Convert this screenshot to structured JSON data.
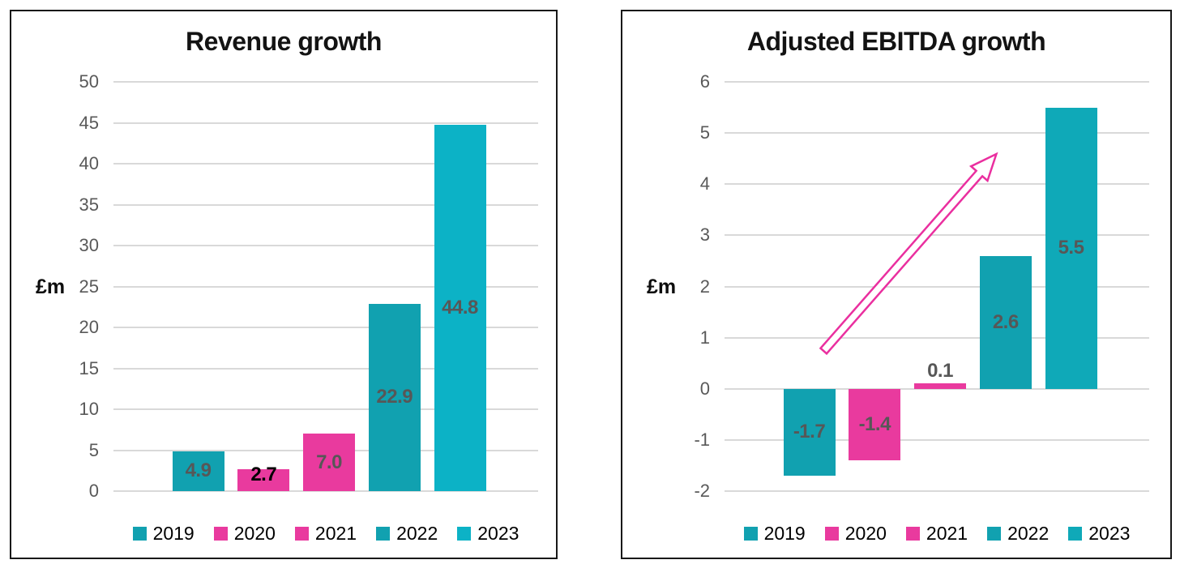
{
  "page": {
    "background": "#ffffff"
  },
  "chart_data": [
    {
      "type": "bar",
      "title": "Revenue growth",
      "ylabel": "£m",
      "categories": [
        "2019",
        "2020",
        "2021",
        "2022",
        "2023"
      ],
      "values": [
        4.9,
        2.7,
        7.0,
        22.9,
        44.8
      ],
      "value_labels": [
        "4.9",
        "2.7",
        "7.0",
        "22.9",
        "44.8"
      ],
      "bar_colors": [
        "#11a1b0",
        "#e93a9e",
        "#e93a9e",
        "#11a1b0",
        "#0cb2c6"
      ],
      "label_colors": [
        "#575757",
        "#000000",
        "#575757",
        "#575757",
        "#575757"
      ],
      "label_placements": [
        "center",
        "top",
        "center",
        "center",
        "center"
      ],
      "ylim": [
        0,
        50
      ],
      "ytick_step": 5,
      "grid": true,
      "gridline_color": "#d9d9d9",
      "tick_color": "#595959",
      "legend_position": "bottom"
    },
    {
      "type": "bar",
      "title": "Adjusted EBITDA growth",
      "ylabel": "£m",
      "categories": [
        "2019",
        "2020",
        "2021",
        "2022",
        "2023"
      ],
      "values": [
        -1.7,
        -1.4,
        0.1,
        2.6,
        5.5
      ],
      "value_labels": [
        "-1.7",
        "-1.4",
        "0.1",
        "2.6",
        "5.5"
      ],
      "bar_colors": [
        "#11a1b0",
        "#e93a9e",
        "#e93a9e",
        "#11a1b0",
        "#0fa9b8"
      ],
      "label_colors": [
        "#575757",
        "#575757",
        "#575757",
        "#575757",
        "#575757"
      ],
      "label_placements": [
        "center",
        "center",
        "above",
        "center",
        "center"
      ],
      "ylim": [
        -2,
        6
      ],
      "ytick_step": 1,
      "grid": true,
      "gridline_color": "#d9d9d9",
      "tick_color": "#595959",
      "legend_position": "bottom",
      "annotation": {
        "type": "block-arrow",
        "color": "#ea2f9f",
        "from": {
          "x": 0.22,
          "y": 0.74
        },
        "to": {
          "x": 2.86,
          "y": 4.59
        }
      }
    }
  ]
}
